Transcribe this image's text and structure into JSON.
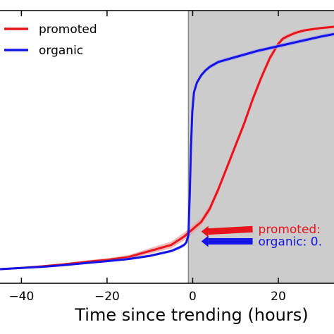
{
  "chart_data": {
    "type": "line",
    "title": "",
    "xlabel": "Time since trending (hours)",
    "ylabel": "",
    "xlim": [
      -45,
      33
    ],
    "ylim": [
      0,
      1
    ],
    "x_ticks": [
      -40,
      -20,
      0,
      20
    ],
    "x_tick_labels": [
      "−40",
      "−20",
      "0",
      "20"
    ],
    "grid": false,
    "legend_position": "top-left",
    "shaded_region": {
      "x_start": -1,
      "x_end": 33,
      "color": "#cccccc"
    },
    "vertical_line_x": -1,
    "series": [
      {
        "name": "promoted",
        "color": "#e8141c",
        "band_color": "#f0a0a0",
        "x": [
          -45,
          -40,
          -35,
          -30,
          -25,
          -20,
          -15,
          -12,
          -10,
          -5,
          -2,
          -1,
          0,
          2,
          4,
          6,
          8,
          10,
          12,
          14,
          16,
          18,
          20,
          21,
          22,
          24,
          26,
          28,
          30,
          33
        ],
        "y": [
          0.0,
          0.005,
          0.012,
          0.02,
          0.03,
          0.038,
          0.05,
          0.065,
          0.075,
          0.1,
          0.135,
          0.15,
          0.165,
          0.195,
          0.25,
          0.33,
          0.42,
          0.51,
          0.6,
          0.7,
          0.79,
          0.87,
          0.93,
          0.95,
          0.96,
          0.975,
          0.985,
          0.99,
          0.995,
          1.0
        ],
        "band": [
          0.0,
          0.003,
          0.004,
          0.005,
          0.006,
          0.007,
          0.008,
          0.01,
          0.012,
          0.014,
          0.016,
          0.016,
          0.016,
          0.016,
          0.016,
          0.016,
          0.016,
          0.016,
          0.016,
          0.016,
          0.016,
          0.014,
          0.012,
          0.01,
          0.009,
          0.008,
          0.007,
          0.006,
          0.006,
          0.006
        ]
      },
      {
        "name": "organic",
        "color": "#1414e6",
        "band_color": "#a0a0f0",
        "x": [
          -45,
          -40,
          -35,
          -30,
          -25,
          -20,
          -15,
          -10,
          -5,
          -3,
          -2,
          -1.5,
          -1,
          -0.7,
          -0.4,
          -0.1,
          0.3,
          1,
          2,
          3,
          4,
          5,
          6,
          8,
          10,
          15,
          20,
          25,
          30,
          33
        ],
        "y": [
          0.0,
          0.005,
          0.01,
          0.017,
          0.025,
          0.033,
          0.042,
          0.055,
          0.075,
          0.09,
          0.1,
          0.11,
          0.14,
          0.3,
          0.5,
          0.65,
          0.73,
          0.77,
          0.8,
          0.82,
          0.835,
          0.845,
          0.855,
          0.865,
          0.875,
          0.9,
          0.92,
          0.94,
          0.96,
          0.97
        ],
        "band": [
          0.0,
          0.002,
          0.003,
          0.003,
          0.004,
          0.004,
          0.005,
          0.005,
          0.006,
          0.007,
          0.007,
          0.007,
          0.008,
          0.008,
          0.008,
          0.008,
          0.008,
          0.008,
          0.008,
          0.008,
          0.008,
          0.008,
          0.008,
          0.008,
          0.008,
          0.008,
          0.008,
          0.008,
          0.008,
          0.008
        ]
      }
    ],
    "annotations": [
      {
        "text": "promoted: ",
        "color": "#e8141c",
        "arrow_tip_x": 2,
        "arrow_tip_y": 0.155,
        "arrow_tail_x": 14,
        "arrow_tail_y": 0.165
      },
      {
        "text": "organic: 0.",
        "color": "#1414e6",
        "arrow_tip_x": 2,
        "arrow_tip_y": 0.115,
        "arrow_tail_x": 14,
        "arrow_tail_y": 0.115
      }
    ]
  }
}
